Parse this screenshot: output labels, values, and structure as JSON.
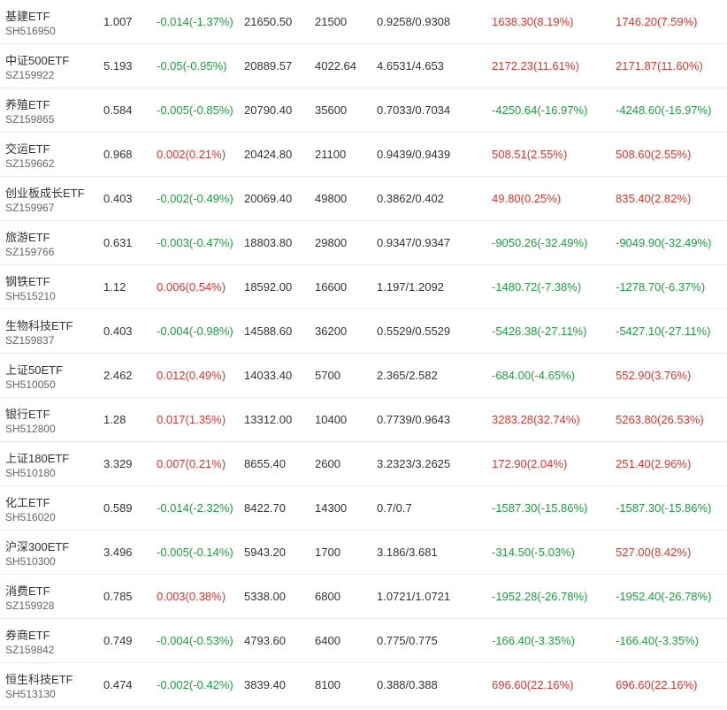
{
  "colors": {
    "up": "#e0352b",
    "down": "#1f9d3f",
    "text": "#333333",
    "subtext": "#666666",
    "divider": "#eaeaea"
  },
  "rows": [
    {
      "name": "基建ETF",
      "code": "SH516950",
      "price": "1.007",
      "change": "-0.014(-1.37%)",
      "change_dir": "down",
      "holding": "21650.50",
      "quantity": "21500",
      "cost": "0.9258/0.9308",
      "pl1": "1638.30(8.19%)",
      "pl1_dir": "up",
      "pl2": "1746.20(7.59%)",
      "pl2_dir": "up"
    },
    {
      "name": "中证500ETF",
      "code": "SZ159922",
      "price": "5.193",
      "change": "-0.05(-0.95%)",
      "change_dir": "down",
      "holding": "20889.57",
      "quantity": "4022.64",
      "cost": "4.6531/4.653",
      "pl1": "2172.23(11.61%)",
      "pl1_dir": "up",
      "pl2": "2171.87(11.60%)",
      "pl2_dir": "up"
    },
    {
      "name": "养殖ETF",
      "code": "SZ159865",
      "price": "0.584",
      "change": "-0.005(-0.85%)",
      "change_dir": "down",
      "holding": "20790.40",
      "quantity": "35600",
      "cost": "0.7033/0.7034",
      "pl1": "-4250.64(-16.97%)",
      "pl1_dir": "down",
      "pl2": "-4248.60(-16.97%)",
      "pl2_dir": "down"
    },
    {
      "name": "交运ETF",
      "code": "SZ159662",
      "price": "0.968",
      "change": "0.002(0.21%)",
      "change_dir": "up",
      "holding": "20424.80",
      "quantity": "21100",
      "cost": "0.9439/0.9439",
      "pl1": "508.51(2.55%)",
      "pl1_dir": "up",
      "pl2": "508.60(2.55%)",
      "pl2_dir": "up"
    },
    {
      "name": "创业板成长ETF",
      "code": "SZ159967",
      "price": "0.403",
      "change": "-0.002(-0.49%)",
      "change_dir": "down",
      "holding": "20069.40",
      "quantity": "49800",
      "cost": "0.3862/0.402",
      "pl1": "49.80(0.25%)",
      "pl1_dir": "up",
      "pl2": "835.40(2.82%)",
      "pl2_dir": "up"
    },
    {
      "name": "旅游ETF",
      "code": "SZ159766",
      "price": "0.631",
      "change": "-0.003(-0.47%)",
      "change_dir": "down",
      "holding": "18803.80",
      "quantity": "29800",
      "cost": "0.9347/0.9347",
      "pl1": "-9050.26(-32.49%)",
      "pl1_dir": "down",
      "pl2": "-9049.90(-32.49%)",
      "pl2_dir": "down"
    },
    {
      "name": "钢铁ETF",
      "code": "SH515210",
      "price": "1.12",
      "change": "0.006(0.54%)",
      "change_dir": "up",
      "holding": "18592.00",
      "quantity": "16600",
      "cost": "1.197/1.2092",
      "pl1": "-1480.72(-7.38%)",
      "pl1_dir": "down",
      "pl2": "-1278.70(-6.37%)",
      "pl2_dir": "down"
    },
    {
      "name": "生物科技ETF",
      "code": "SZ159837",
      "price": "0.403",
      "change": "-0.004(-0.98%)",
      "change_dir": "down",
      "holding": "14588.60",
      "quantity": "36200",
      "cost": "0.5529/0.5529",
      "pl1": "-5426.38(-27.11%)",
      "pl1_dir": "down",
      "pl2": "-5427.10(-27.11%)",
      "pl2_dir": "down"
    },
    {
      "name": "上证50ETF",
      "code": "SH510050",
      "price": "2.462",
      "change": "0.012(0.49%)",
      "change_dir": "up",
      "holding": "14033.40",
      "quantity": "5700",
      "cost": "2.365/2.582",
      "pl1": "-684.00(-4.65%)",
      "pl1_dir": "down",
      "pl2": "552.90(3.76%)",
      "pl2_dir": "up"
    },
    {
      "name": "银行ETF",
      "code": "SH512800",
      "price": "1.28",
      "change": "0.017(1.35%)",
      "change_dir": "up",
      "holding": "13312.00",
      "quantity": "10400",
      "cost": "0.7739/0.9643",
      "pl1": "3283.28(32.74%)",
      "pl1_dir": "up",
      "pl2": "5263.80(26.53%)",
      "pl2_dir": "up"
    },
    {
      "name": "上证180ETF",
      "code": "SH510180",
      "price": "3.329",
      "change": "0.007(0.21%)",
      "change_dir": "up",
      "holding": "8655.40",
      "quantity": "2600",
      "cost": "3.2323/3.2625",
      "pl1": "172.90(2.04%)",
      "pl1_dir": "up",
      "pl2": "251.40(2.96%)",
      "pl2_dir": "up"
    },
    {
      "name": "化工ETF",
      "code": "SH516020",
      "price": "0.589",
      "change": "-0.014(-2.32%)",
      "change_dir": "down",
      "holding": "8422.70",
      "quantity": "14300",
      "cost": "0.7/0.7",
      "pl1": "-1587.30(-15.86%)",
      "pl1_dir": "down",
      "pl2": "-1587.30(-15.86%)",
      "pl2_dir": "down"
    },
    {
      "name": "沪深300ETF",
      "code": "SH510300",
      "price": "3.496",
      "change": "-0.005(-0.14%)",
      "change_dir": "down",
      "holding": "5943.20",
      "quantity": "1700",
      "cost": "3.186/3.681",
      "pl1": "-314.50(-5.03%)",
      "pl1_dir": "down",
      "pl2": "527.00(8.42%)",
      "pl2_dir": "up"
    },
    {
      "name": "消费ETF",
      "code": "SZ159928",
      "price": "0.785",
      "change": "0.003(0.38%)",
      "change_dir": "up",
      "holding": "5338.00",
      "quantity": "6800",
      "cost": "1.0721/1.0721",
      "pl1": "-1952.28(-26.78%)",
      "pl1_dir": "down",
      "pl2": "-1952.40(-26.78%)",
      "pl2_dir": "down"
    },
    {
      "name": "券商ETF",
      "code": "SZ159842",
      "price": "0.749",
      "change": "-0.004(-0.53%)",
      "change_dir": "down",
      "holding": "4793.60",
      "quantity": "6400",
      "cost": "0.775/0.775",
      "pl1": "-166.40(-3.35%)",
      "pl1_dir": "down",
      "pl2": "-166.40(-3.35%)",
      "pl2_dir": "down"
    },
    {
      "name": "恒生科技ETF",
      "code": "SH513130",
      "price": "0.474",
      "change": "-0.002(-0.42%)",
      "change_dir": "down",
      "holding": "3839.40",
      "quantity": "8100",
      "cost": "0.388/0.388",
      "pl1": "696.60(22.16%)",
      "pl1_dir": "up",
      "pl2": "696.60(22.16%)",
      "pl2_dir": "up"
    }
  ]
}
